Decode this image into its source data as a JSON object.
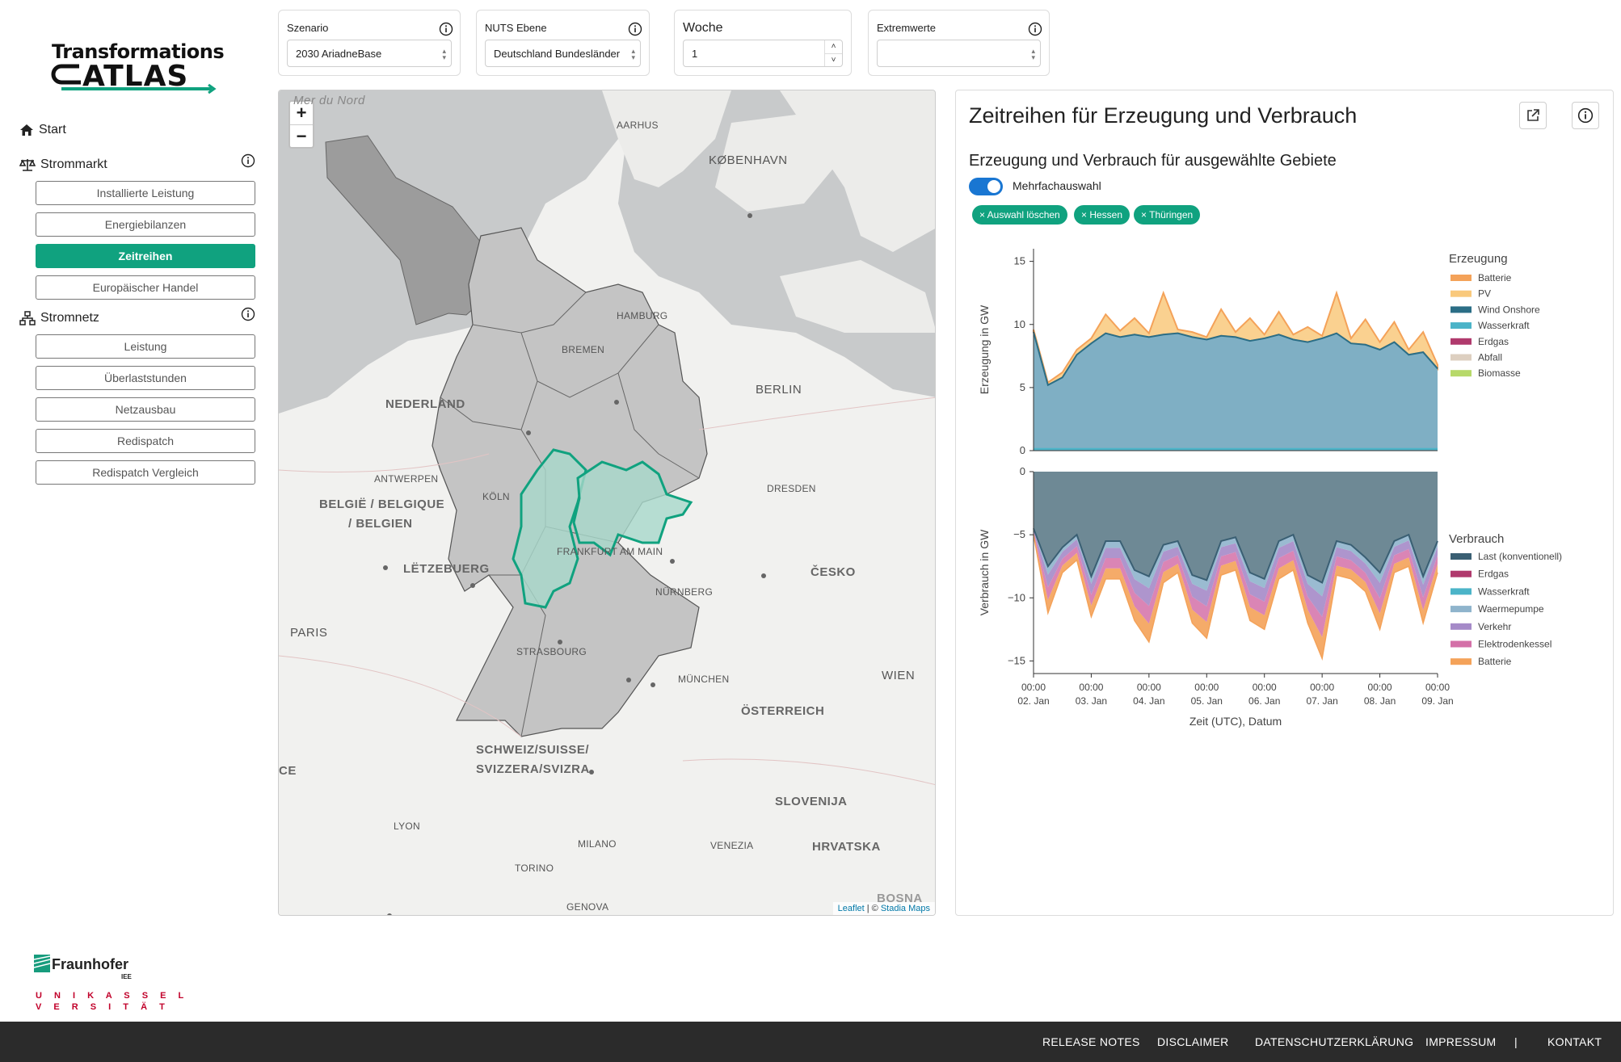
{
  "logo": {
    "line1": "Transformations",
    "line2": "ATLAS"
  },
  "sidebar": {
    "start": "Start",
    "strommarkt": "Strommarkt",
    "strommarkt_items": [
      "Installierte Leistung",
      "Energiebilanzen",
      "Zeitreihen",
      "Europäischer Handel"
    ],
    "stromnetz": "Stromnetz",
    "stromnetz_items": [
      "Leistung",
      "Überlaststunden",
      "Netzausbau",
      "Redispatch",
      "Redispatch Vergleich"
    ],
    "active_item": "Zeitreihen"
  },
  "controls": {
    "szenario": {
      "label": "Szenario",
      "value": "2030 AriadneBase"
    },
    "nuts": {
      "label": "NUTS Ebene",
      "value": "Deutschland Bundesländer"
    },
    "woche": {
      "label": "Woche",
      "value": "1"
    },
    "extremwerte": {
      "label": "Extremwerte",
      "value": ""
    }
  },
  "map": {
    "zoom_in": "+",
    "zoom_out": "−",
    "labels": {
      "mer_du_nord": "Mer du Nord",
      "aarhus": "AARHUS",
      "kobenhavn": "KØBENHAVN",
      "hamburg": "HAMBURG",
      "bremen": "BREMEN",
      "berlin": "BERLIN",
      "nederland": "NEDERLAND",
      "antwerpen": "ANTWERPEN",
      "koln": "KÖLN",
      "belgie1": "BELGIË / BELGIQUE",
      "belgie2": "/ BELGIEN",
      "dresden": "DRESDEN",
      "frankfurt": "FRANKFURT AM MAIN",
      "letzebuerg": "LËTZEBUERG",
      "cesko": "ČESKO",
      "nurnberg": "NÜRNBERG",
      "paris": "PARIS",
      "strasbourg": "STRASBOURG",
      "munchen": "MÜNCHEN",
      "wien": "WIEN",
      "osterreich": "ÖSTERREICH",
      "schweiz1": "SCHWEIZ/SUISSE/",
      "schweiz2": "SVIZZERA/SVIZRA",
      "slovenija": "SLOVENIJA",
      "lyon": "LYON",
      "milano": "MILANO",
      "venezia": "VENEZIA",
      "hrvatska": "HRVATSKA",
      "torino": "TORINO",
      "genova": "GENOVA",
      "bosna": "BOSNA",
      "ce": "CE"
    },
    "attribution": {
      "leaflet": "Leaflet",
      "sep": " | © ",
      "stadia": "Stadia Maps"
    },
    "selected_color": "#10a27f"
  },
  "panel": {
    "title": "Zeitreihen für Erzeugung und Verbrauch",
    "subtitle": "Erzeugung und Verbrauch für ausgewählte Gebiete",
    "toggle_label": "Mehrfachauswahl",
    "chips": [
      "× Auswahl löschen",
      "× Hessen",
      "× Thüringen"
    ],
    "icons": {
      "export": "external-link-icon",
      "info": "info-icon"
    }
  },
  "chart_data": {
    "type": "area",
    "x_ticks": [
      {
        "time": "00:00",
        "date": "02. Jan"
      },
      {
        "time": "00:00",
        "date": "03. Jan"
      },
      {
        "time": "00:00",
        "date": "04. Jan"
      },
      {
        "time": "00:00",
        "date": "05. Jan"
      },
      {
        "time": "00:00",
        "date": "06. Jan"
      },
      {
        "time": "00:00",
        "date": "07. Jan"
      },
      {
        "time": "00:00",
        "date": "08. Jan"
      },
      {
        "time": "00:00",
        "date": "09. Jan"
      }
    ],
    "xlabel": "Zeit (UTC), Datum",
    "generation": {
      "ylabel": "Erzeugung in GW",
      "ylim": [
        0,
        16
      ],
      "yticks": [
        0,
        5,
        10,
        15
      ],
      "legend_title": "Erzeugung",
      "legend": [
        {
          "name": "Batterie",
          "color": "#f4a259"
        },
        {
          "name": "PV",
          "color": "#f9c97c"
        },
        {
          "name": "Wind Onshore",
          "color": "#2b6e86"
        },
        {
          "name": "Wasserkraft",
          "color": "#4bb4c8"
        },
        {
          "name": "Erdgas",
          "color": "#b03a6d"
        },
        {
          "name": "Abfall",
          "color": "#ddcfc0"
        },
        {
          "name": "Biomasse",
          "color": "#b7d96a"
        }
      ],
      "days": [
        0,
        0.25,
        0.5,
        0.75,
        1,
        1.25,
        1.5,
        1.75,
        2,
        2.25,
        2.5,
        2.75,
        3,
        3.25,
        3.5,
        3.75,
        4,
        4.25,
        4.5,
        4.75,
        5,
        5.25,
        5.5,
        5.75,
        6,
        6.25,
        6.5,
        6.75,
        7
      ],
      "wind": [
        9.4,
        5.2,
        5.8,
        7.6,
        8.5,
        9.3,
        9.0,
        9.2,
        9.0,
        9.2,
        9.3,
        9.0,
        8.8,
        9.1,
        9.0,
        8.7,
        8.9,
        9.2,
        8.8,
        8.6,
        8.9,
        9.3,
        8.5,
        8.4,
        8.0,
        8.6,
        7.6,
        7.8,
        6.5
      ],
      "total": [
        9.6,
        5.4,
        6.2,
        8.0,
        8.9,
        10.8,
        9.5,
        10.5,
        9.3,
        12.5,
        9.6,
        9.4,
        9.0,
        11.2,
        9.4,
        10.5,
        9.2,
        11.0,
        9.2,
        9.8,
        9.1,
        12.5,
        8.9,
        10.4,
        8.6,
        10.2,
        8.0,
        9.4,
        6.8
      ]
    },
    "consumption": {
      "ylabel": "Verbrauch in GW",
      "ylim": [
        -16,
        0
      ],
      "yticks": [
        0,
        -5,
        -10,
        -15
      ],
      "legend_title": "Verbrauch",
      "legend": [
        {
          "name": "Last (konventionell)",
          "color": "#3a5f73"
        },
        {
          "name": "Erdgas",
          "color": "#b03a6d"
        },
        {
          "name": "Wasserkraft",
          "color": "#4bb4c8"
        },
        {
          "name": "Waermepumpe",
          "color": "#8fb4cc"
        },
        {
          "name": "Verkehr",
          "color": "#a58ac8"
        },
        {
          "name": "Elektrodenkessel",
          "color": "#d470a8"
        },
        {
          "name": "Batterie",
          "color": "#f4a259"
        }
      ],
      "days": [
        0,
        0.25,
        0.5,
        0.75,
        1,
        1.25,
        1.5,
        1.75,
        2,
        2.25,
        2.5,
        2.75,
        3,
        3.25,
        3.5,
        3.75,
        4,
        4.25,
        4.5,
        4.75,
        5,
        5.25,
        5.5,
        5.75,
        6,
        6.25,
        6.5,
        6.75,
        7
      ],
      "last": [
        -4.5,
        -7.5,
        -6.0,
        -5.0,
        -8.3,
        -5.5,
        -5.5,
        -7.8,
        -8.3,
        -5.8,
        -5.5,
        -8.2,
        -8.6,
        -5.5,
        -5.2,
        -8.0,
        -8.5,
        -5.5,
        -5.0,
        -8.2,
        -8.8,
        -5.5,
        -5.8,
        -6.8,
        -8.0,
        -5.5,
        -5.0,
        -8.3,
        -5.5
      ],
      "total": [
        -5.0,
        -11.2,
        -8.0,
        -7.0,
        -11.5,
        -8.5,
        -8.5,
        -11.8,
        -13.5,
        -8.8,
        -8.0,
        -12.0,
        -13.2,
        -8.2,
        -7.8,
        -11.8,
        -12.5,
        -8.5,
        -7.8,
        -12.0,
        -14.8,
        -8.2,
        -8.5,
        -9.5,
        -12.5,
        -8.0,
        -7.5,
        -12.0,
        -8.0
      ]
    }
  },
  "logos": {
    "fraunhofer": "Fraunhofer",
    "iee": "IEE",
    "unikassel1": "U N I K A S S E L",
    "unikassel2": "V E R S I T Ä T"
  },
  "footer": {
    "links": [
      "RELEASE NOTES",
      "DISCLAIMER",
      "DATENSCHUTZERKLÄRUNG",
      "IMPRESSUM",
      "|",
      "KONTAKT"
    ]
  }
}
